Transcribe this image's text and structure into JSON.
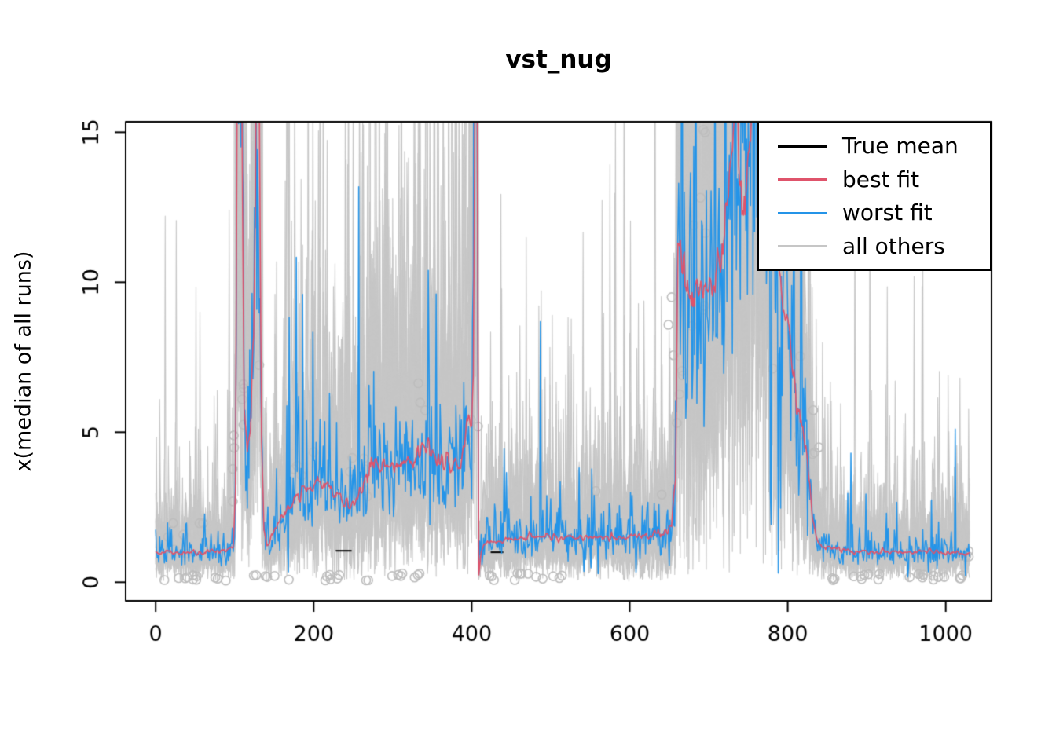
{
  "chart_data": {
    "type": "line",
    "title": "vst_nug",
    "xlabel": "",
    "ylabel": "x(median of all runs)",
    "x_ticks": [
      0,
      200,
      400,
      600,
      800,
      1000
    ],
    "y_ticks": [
      0,
      5,
      10,
      15
    ],
    "xlim": [
      -38,
      1058
    ],
    "ylim": [
      -0.62,
      15.35
    ],
    "x_data_range": [
      0,
      1030
    ],
    "grid": false,
    "legend": {
      "position": "top-right",
      "entries": [
        {
          "label": "True mean",
          "color": "#000000"
        },
        {
          "label": "best fit",
          "color": "#DF536B"
        },
        {
          "label": "worst fit",
          "color": "#2494E8"
        },
        {
          "label": "all others",
          "color": "#C6C6C6"
        }
      ]
    },
    "mean_curve": [
      [
        0,
        1.0
      ],
      [
        60,
        1.0
      ],
      [
        90,
        1.05
      ],
      [
        98,
        1.3
      ],
      [
        101,
        3
      ],
      [
        103,
        16
      ],
      [
        109,
        16
      ],
      [
        112,
        6
      ],
      [
        116,
        4.2
      ],
      [
        120,
        5
      ],
      [
        124,
        8
      ],
      [
        127,
        16
      ],
      [
        131,
        16
      ],
      [
        134,
        5
      ],
      [
        137,
        1.8
      ],
      [
        141,
        1.2
      ],
      [
        146,
        1.5
      ],
      [
        152,
        1.8
      ],
      [
        160,
        2.2
      ],
      [
        170,
        2.6
      ],
      [
        180,
        3.0
      ],
      [
        188,
        3.2
      ],
      [
        196,
        3.1
      ],
      [
        204,
        3.2
      ],
      [
        212,
        3.4
      ],
      [
        218,
        3.3
      ],
      [
        226,
        3.0
      ],
      [
        234,
        2.8
      ],
      [
        242,
        2.65
      ],
      [
        250,
        2.6
      ],
      [
        257,
        2.8
      ],
      [
        263,
        3.3
      ],
      [
        270,
        3.8
      ],
      [
        278,
        4.1
      ],
      [
        288,
        4.0
      ],
      [
        298,
        3.9
      ],
      [
        308,
        4.0
      ],
      [
        318,
        4.1
      ],
      [
        328,
        4.0
      ],
      [
        336,
        4.3
      ],
      [
        344,
        4.6
      ],
      [
        350,
        4.3
      ],
      [
        356,
        4.1
      ],
      [
        364,
        4.0
      ],
      [
        372,
        3.95
      ],
      [
        380,
        4.0
      ],
      [
        386,
        4.1
      ],
      [
        391,
        4.4
      ],
      [
        394,
        5.3
      ],
      [
        397,
        5.6
      ],
      [
        400,
        5.2
      ],
      [
        402,
        7
      ],
      [
        404,
        16
      ],
      [
        407,
        16
      ],
      [
        409,
        0.25
      ],
      [
        412,
        1.0
      ],
      [
        416,
        1.25
      ],
      [
        424,
        1.35
      ],
      [
        436,
        1.4
      ],
      [
        452,
        1.45
      ],
      [
        480,
        1.5
      ],
      [
        520,
        1.5
      ],
      [
        560,
        1.5
      ],
      [
        600,
        1.5
      ],
      [
        628,
        1.55
      ],
      [
        645,
        1.65
      ],
      [
        653,
        1.9
      ],
      [
        658,
        3.5
      ],
      [
        661,
        11.5
      ],
      [
        664,
        10.8
      ],
      [
        667,
        10.0
      ],
      [
        671,
        10.4
      ],
      [
        675,
        9.6
      ],
      [
        679,
        9.3
      ],
      [
        683,
        9.9
      ],
      [
        687,
        9.5
      ],
      [
        691,
        9.8
      ],
      [
        695,
        9.4
      ],
      [
        699,
        9.6
      ],
      [
        703,
        10.1
      ],
      [
        707,
        9.7
      ],
      [
        711,
        10.4
      ],
      [
        715,
        11
      ],
      [
        719,
        11.8
      ],
      [
        723,
        12.8
      ],
      [
        727,
        13.8
      ],
      [
        731,
        15.2
      ],
      [
        735,
        16
      ],
      [
        739,
        13.2
      ],
      [
        743,
        12.6
      ],
      [
        747,
        12.9
      ],
      [
        751,
        13.8
      ],
      [
        755,
        15.5
      ],
      [
        760,
        16
      ],
      [
        768,
        16
      ],
      [
        774,
        15.2
      ],
      [
        779,
        13
      ],
      [
        783,
        11.2
      ],
      [
        787,
        10.2
      ],
      [
        791,
        9.6
      ],
      [
        795,
        9.8
      ],
      [
        799,
        9.5
      ],
      [
        803,
        8.2
      ],
      [
        807,
        6.8
      ],
      [
        811,
        5.8
      ],
      [
        815,
        5.3
      ],
      [
        819,
        4.9
      ],
      [
        823,
        4.6
      ],
      [
        827,
        3.4
      ],
      [
        831,
        2.2
      ],
      [
        835,
        1.6
      ],
      [
        840,
        1.3
      ],
      [
        848,
        1.15
      ],
      [
        860,
        1.1
      ],
      [
        880,
        1.05
      ],
      [
        910,
        1.0
      ],
      [
        950,
        1.0
      ],
      [
        1000,
        1.0
      ],
      [
        1030,
        1.0
      ]
    ],
    "series": [
      {
        "name": "True mean",
        "role": "true_mean",
        "color": "#000000",
        "visible_segments": [
          [
            228,
            248,
            1.05
          ],
          [
            424,
            440,
            1.0
          ]
        ]
      },
      {
        "name": "best fit",
        "role": "best_fit",
        "color": "#DF536B",
        "noise_sigma": 0.07
      },
      {
        "name": "worst fit",
        "role": "worst_fit",
        "color": "#2494E8",
        "noise_sigma": 0.28,
        "notable_points": [
          [
            186,
            9.6
          ],
          [
            788,
            0.3
          ],
          [
            880,
            4.3
          ],
          [
            978,
            0.35
          ]
        ]
      },
      {
        "name": "all others",
        "role": "all_others",
        "color": "#C6C6C6",
        "n_runs": 14,
        "noise_sigma": 0.55
      }
    ],
    "outlier_circles": {
      "color": "#BDBDBD",
      "radius": 5.5,
      "clusters": [
        {
          "x0": 8,
          "x1": 95,
          "y0": 0.05,
          "y1": 0.25,
          "n": 12
        },
        {
          "x0": 12,
          "x1": 40,
          "y0": 0.9,
          "y1": 2.2,
          "n": 5
        },
        {
          "x0": 55,
          "x1": 65,
          "y0": 1.9,
          "y1": 2.1,
          "n": 2
        },
        {
          "x0": 95,
          "x1": 112,
          "y0": 2.5,
          "y1": 7.6,
          "n": 8
        },
        {
          "x0": 118,
          "x1": 170,
          "y0": 0.05,
          "y1": 0.3,
          "n": 6
        },
        {
          "x0": 128,
          "x1": 136,
          "y0": 7.2,
          "y1": 7.6,
          "n": 1
        },
        {
          "x0": 175,
          "x1": 215,
          "y0": 3.4,
          "y1": 4.6,
          "n": 4
        },
        {
          "x0": 210,
          "x1": 235,
          "y0": 0.05,
          "y1": 0.3,
          "n": 6
        },
        {
          "x0": 240,
          "x1": 268,
          "y0": 2.4,
          "y1": 4.3,
          "n": 7
        },
        {
          "x0": 265,
          "x1": 335,
          "y0": 0.05,
          "y1": 0.3,
          "n": 9
        },
        {
          "x0": 330,
          "x1": 345,
          "y0": 3.3,
          "y1": 7.4,
          "n": 3
        },
        {
          "x0": 395,
          "x1": 410,
          "y0": 4.4,
          "y1": 5.6,
          "n": 3
        },
        {
          "x0": 415,
          "x1": 475,
          "y0": 0.05,
          "y1": 0.3,
          "n": 8
        },
        {
          "x0": 478,
          "x1": 525,
          "y0": 0.1,
          "y1": 0.3,
          "n": 5
        },
        {
          "x0": 553,
          "x1": 568,
          "y0": 2.7,
          "y1": 3.1,
          "n": 1
        },
        {
          "x0": 640,
          "x1": 668,
          "y0": 2.4,
          "y1": 9.6,
          "n": 8
        },
        {
          "x0": 676,
          "x1": 698,
          "y0": 8.4,
          "y1": 15.2,
          "n": 9
        },
        {
          "x0": 775,
          "x1": 840,
          "y0": 4.2,
          "y1": 7.6,
          "n": 7
        },
        {
          "x0": 820,
          "x1": 930,
          "y0": 0.05,
          "y1": 0.3,
          "n": 10
        },
        {
          "x0": 935,
          "x1": 1010,
          "y0": 0.05,
          "y1": 0.3,
          "n": 8
        },
        {
          "x0": 1008,
          "x1": 1030,
          "y0": 0.8,
          "y1": 1.15,
          "n": 6
        },
        {
          "x0": 1012,
          "x1": 1030,
          "y0": 0.05,
          "y1": 0.25,
          "n": 3
        }
      ]
    }
  }
}
